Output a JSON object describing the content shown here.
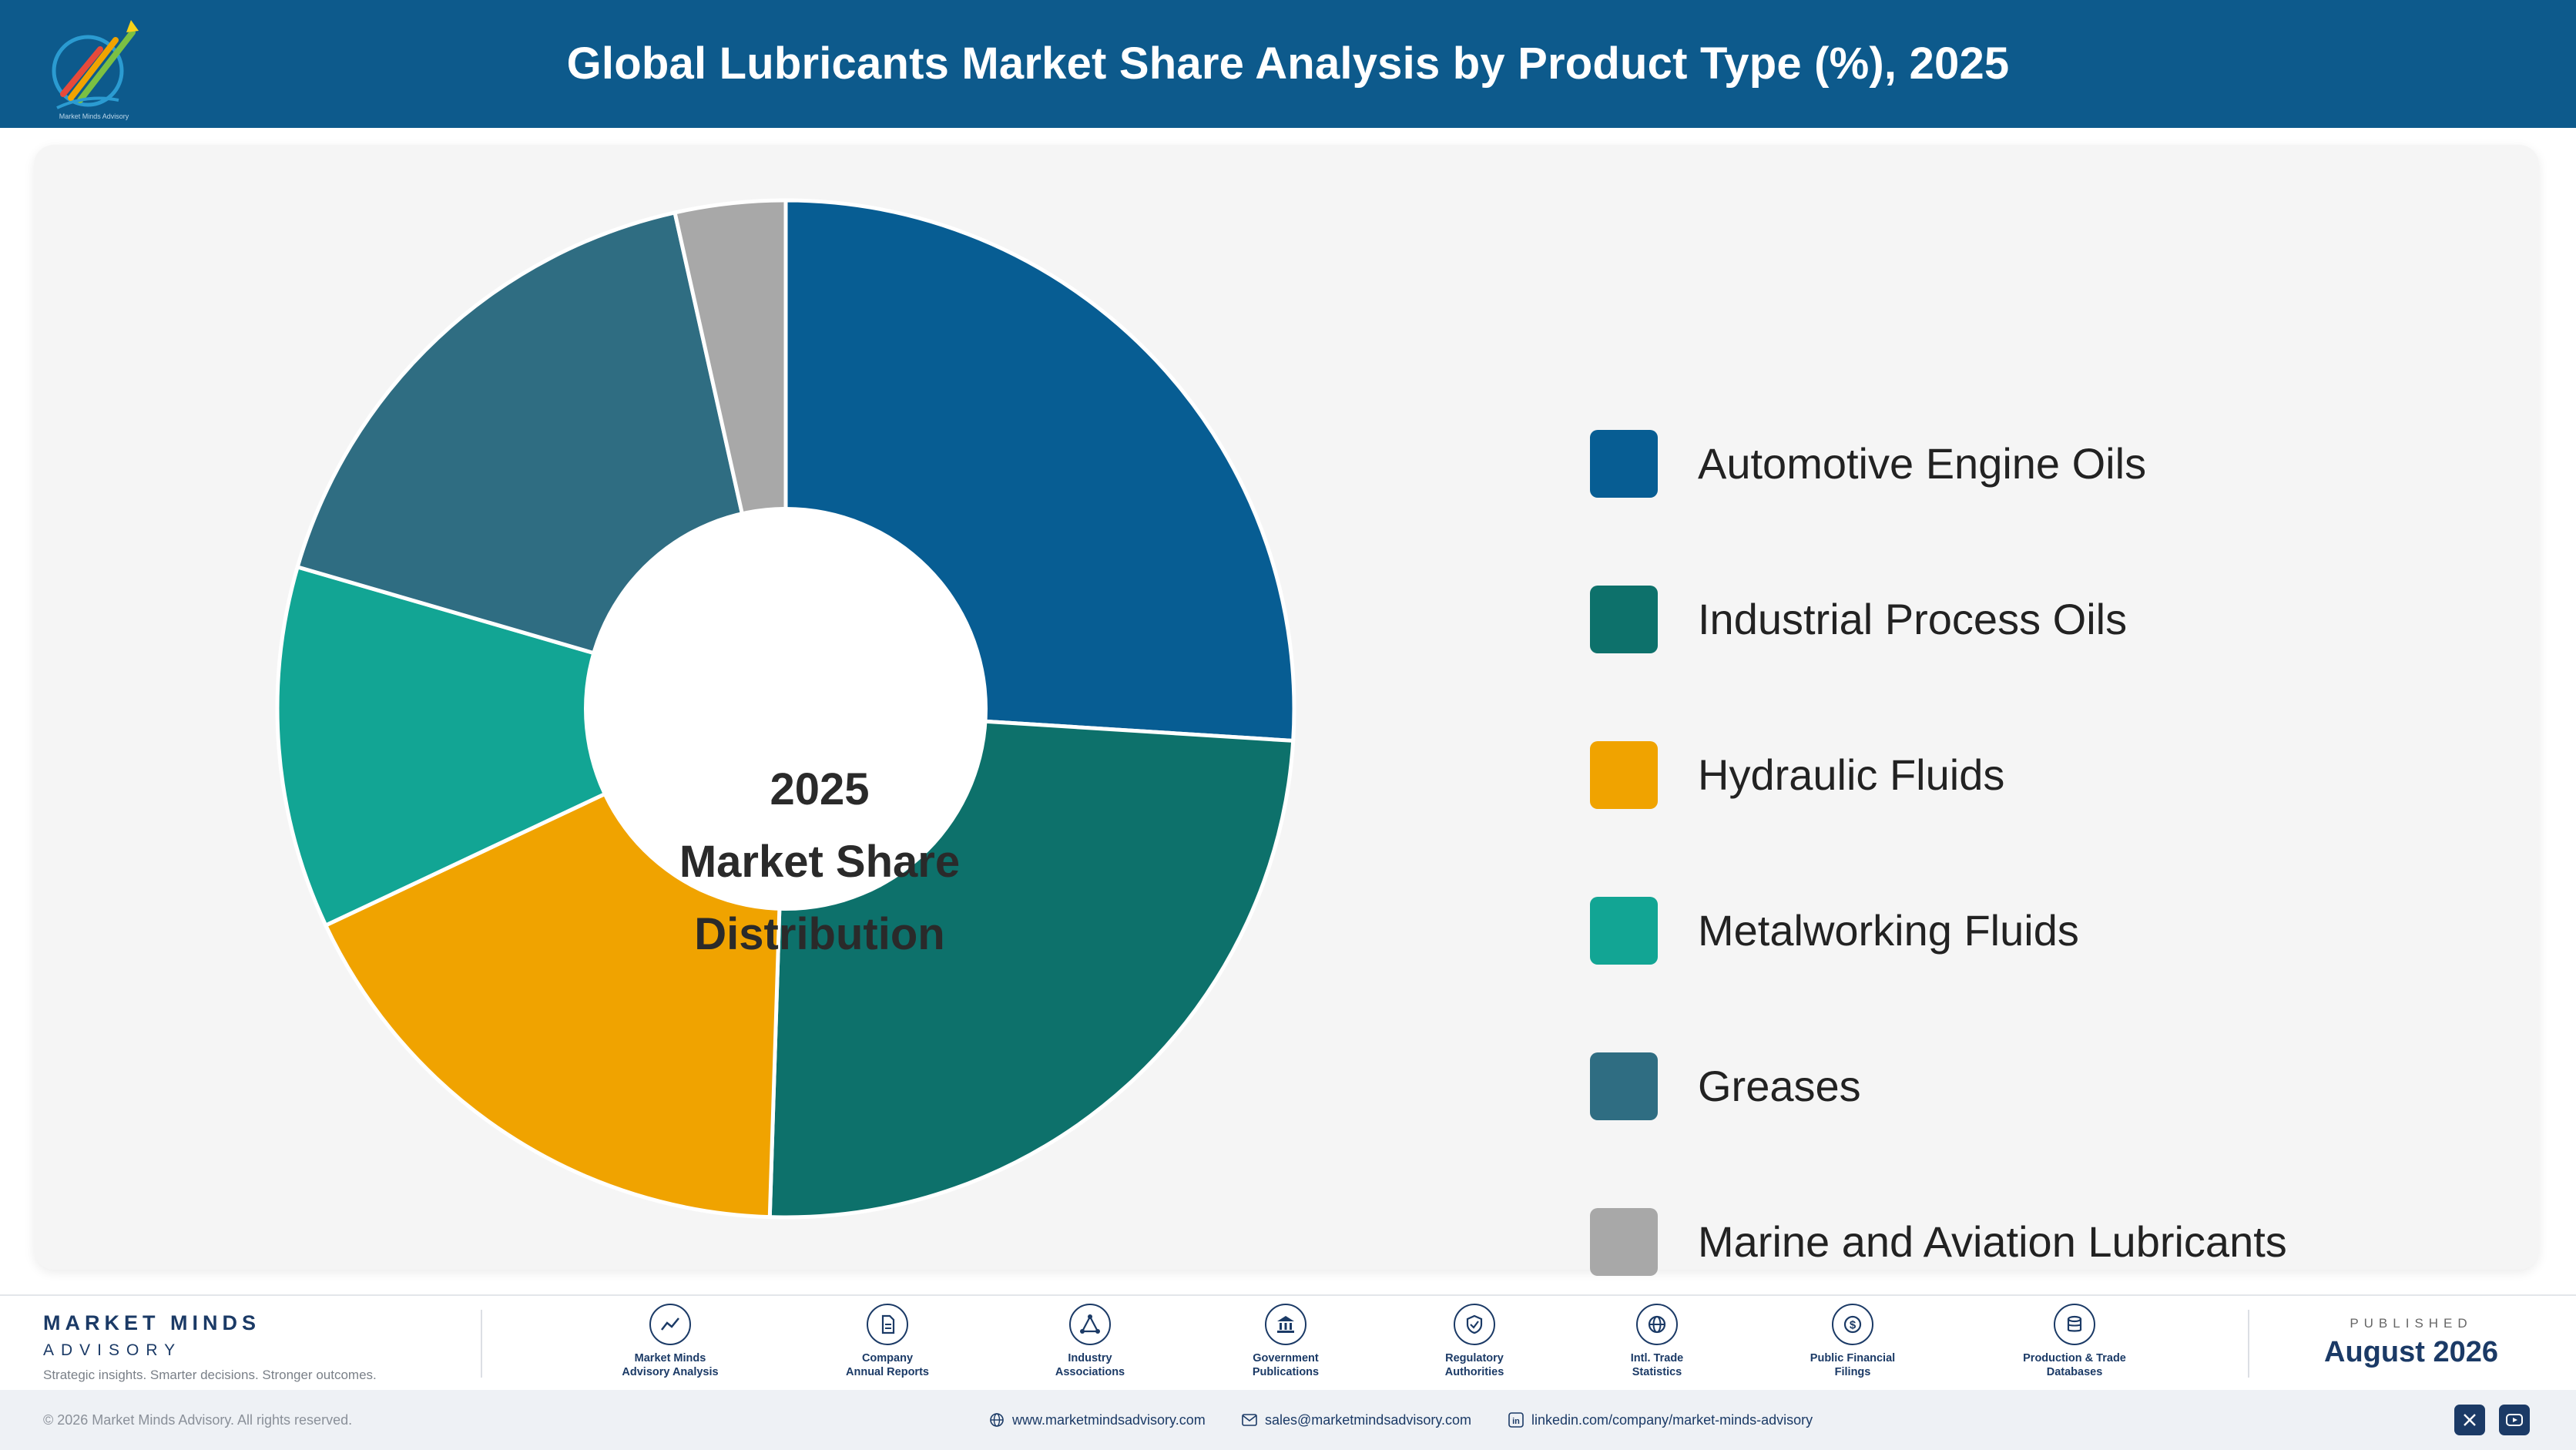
{
  "header": {
    "title": "Global Lubricants Market Share Analysis by Product Type (%), 2025"
  },
  "logo": {
    "icon": "market-minds-logo",
    "caption": "Market Minds Advisory"
  },
  "chart_data": {
    "type": "pie",
    "title": "Global Lubricants Market Share Analysis by Product Type (%), 2025",
    "center_label": [
      "2025",
      "Market Share",
      "Distribution"
    ],
    "categories": [
      "Automotive Engine Oils",
      "Industrial Process Oils",
      "Hydraulic Fluids",
      "Metalworking Fluids",
      "Greases",
      "Marine and Aviation Lubricants"
    ],
    "values": [
      26.0,
      24.5,
      17.5,
      11.5,
      17.0,
      3.5
    ],
    "colors": [
      "#075d93",
      "#0d716b",
      "#f0a300",
      "#12a594",
      "#2f6d82",
      "#a8a8a8"
    ],
    "legend_position": "right",
    "donut": true
  },
  "footer": {
    "brand_name": "MARKET MINDS",
    "brand_sub": "ADVISORY",
    "tagline": "Strategic insights. Smarter decisions. Stronger outcomes.",
    "sources": [
      {
        "line1": "Market Minds",
        "line2": "Advisory Analysis",
        "icon": "chart-line-icon"
      },
      {
        "line1": "Company",
        "line2": "Annual Reports",
        "icon": "document-icon"
      },
      {
        "line1": "Industry",
        "line2": "Associations",
        "icon": "network-icon"
      },
      {
        "line1": "Government",
        "line2": "Publications",
        "icon": "government-building-icon"
      },
      {
        "line1": "Regulatory",
        "line2": "Authorities",
        "icon": "shield-check-icon"
      },
      {
        "line1": "Intl. Trade",
        "line2": "Statistics",
        "icon": "globe-icon"
      },
      {
        "line1": "Public Financial",
        "line2": "Filings",
        "icon": "dollar-coin-icon"
      },
      {
        "line1": "Production & Trade",
        "line2": "Databases",
        "icon": "database-icon"
      }
    ],
    "published_label": "PUBLISHED",
    "published_date": "August 2026"
  },
  "bottom_bar": {
    "copyright": "© 2026 Market Minds Advisory. All rights reserved.",
    "website": "www.marketmindsadvisory.com",
    "email": "sales@marketmindsadvisory.com",
    "linkedin": "linkedin.com/company/market-minds-advisory",
    "social_icons": [
      "x-icon",
      "youtube-icon"
    ]
  }
}
